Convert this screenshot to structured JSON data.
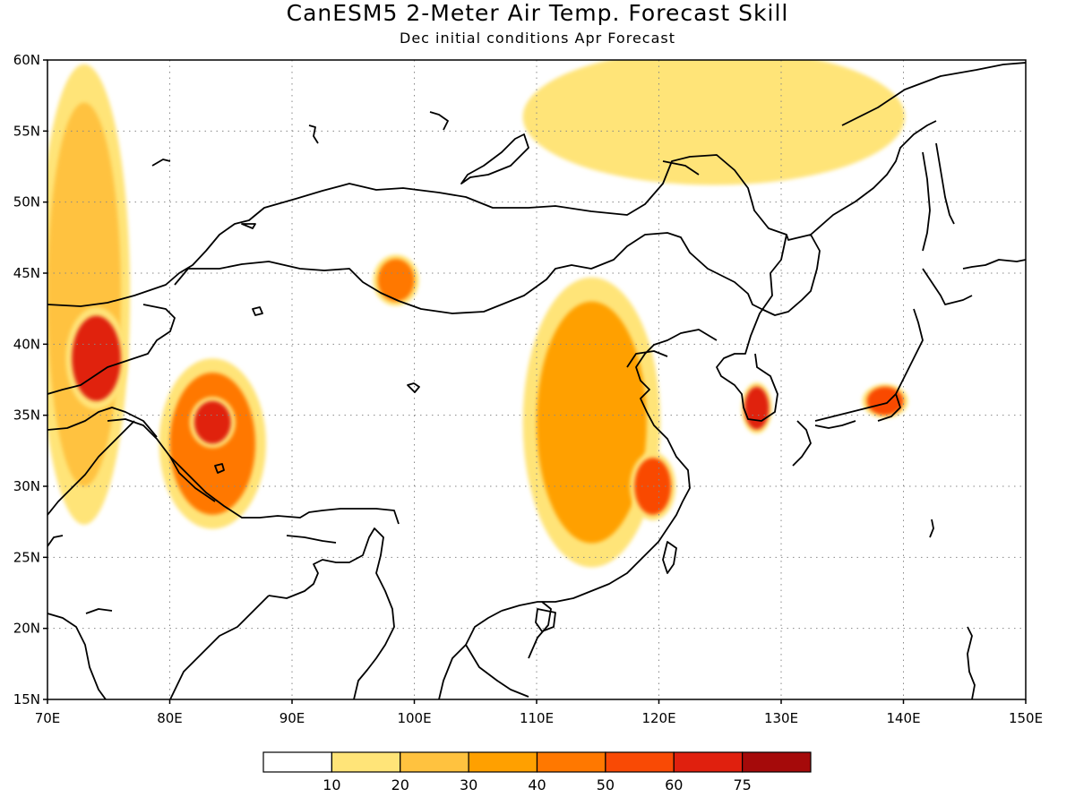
{
  "title": "CanESM5 2-Meter Air Temp. Forecast Skill",
  "subtitle": "Dec initial conditions  Apr Forecast",
  "map": {
    "lon_range": [
      70,
      150
    ],
    "lat_range": [
      15,
      60
    ],
    "lon_ticks": [
      "70E",
      "80E",
      "90E",
      "100E",
      "110E",
      "120E",
      "130E",
      "140E",
      "150E"
    ],
    "lat_ticks": [
      "60N",
      "55N",
      "50N",
      "45N",
      "40N",
      "35N",
      "30N",
      "25N",
      "20N",
      "15N"
    ],
    "gridlines": "dotted"
  },
  "colorbar": {
    "colors": [
      "#ffffff",
      "#ffe478",
      "#ffc23f",
      "#ffa000",
      "#ff7800",
      "#f94a05",
      "#e0200e",
      "#a50a0a"
    ],
    "labels": [
      "10",
      "20",
      "30",
      "40",
      "50",
      "60",
      "75"
    ]
  },
  "chart_data": {
    "type": "heatmap",
    "title": "CanESM5 2-Meter Air Temp. Forecast Skill",
    "subtitle": "Dec initial conditions  Apr Forecast",
    "xlim": [
      70,
      150
    ],
    "ylim": [
      15,
      60
    ],
    "levels": [
      10,
      20,
      30,
      40,
      50,
      60,
      75
    ],
    "regions": [
      {
        "name": "",
        "lon": [
          70,
          76
        ],
        "lat": [
          30,
          57
        ],
        "level": 20
      },
      {
        "name": "",
        "lon": [
          72,
          76
        ],
        "lat": [
          36,
          42
        ],
        "level": 60
      },
      {
        "name": "",
        "lon": [
          80,
          87
        ],
        "lat": [
          28,
          38
        ],
        "level": 40
      },
      {
        "name": "",
        "lon": [
          82,
          85
        ],
        "lat": [
          33,
          36
        ],
        "level": 60
      },
      {
        "name": "",
        "lon": [
          97,
          100
        ],
        "lat": [
          43,
          46
        ],
        "level": 40
      },
      {
        "name": "",
        "lon": [
          110,
          119
        ],
        "lat": [
          26,
          43
        ],
        "level": 30
      },
      {
        "name": "",
        "lon": [
          118,
          121
        ],
        "lat": [
          28,
          32
        ],
        "level": 50
      },
      {
        "name": "",
        "lon": [
          127,
          129
        ],
        "lat": [
          34,
          37
        ],
        "level": 60
      },
      {
        "name": "",
        "lon": [
          137,
          140
        ],
        "lat": [
          35,
          37
        ],
        "level": 50
      },
      {
        "name": "",
        "lon": [
          112,
          137
        ],
        "lat": [
          52,
          60
        ],
        "level": 10
      }
    ]
  }
}
